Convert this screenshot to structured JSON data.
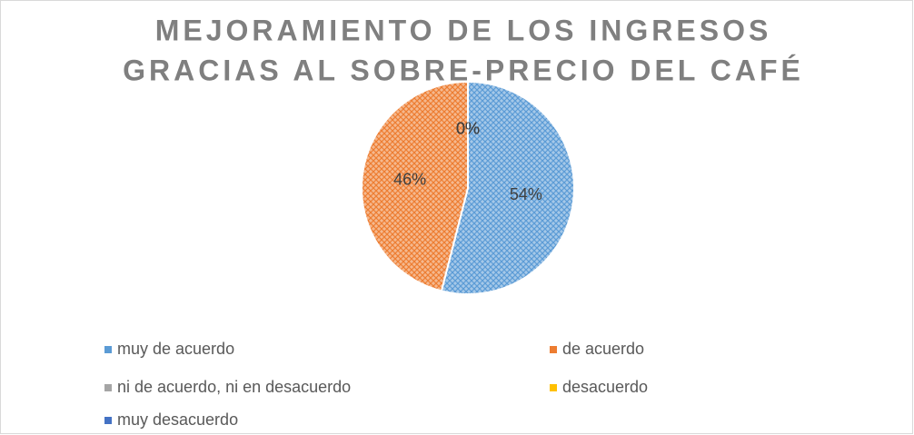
{
  "chart_data": {
    "type": "pie",
    "title": [
      "MEJORAMIENTO DE LOS INGRESOS",
      "GRACIAS AL SOBRE-PRECIO DEL CAFÉ"
    ],
    "categories": [
      "muy de acuerdo",
      "de acuerdo",
      "ni de acuerdo, ni en desacuerdo",
      "desacuerdo",
      "muy desacuerdo"
    ],
    "values": [
      54,
      46,
      0,
      0,
      0
    ],
    "value_labels": [
      "54%",
      "46%",
      "0%",
      "0%",
      "0%"
    ],
    "colors": [
      "#5b9bd5",
      "#ed7d31",
      "#a5a5a5",
      "#ffc000",
      "#4472c4"
    ],
    "legend": "bottom"
  }
}
